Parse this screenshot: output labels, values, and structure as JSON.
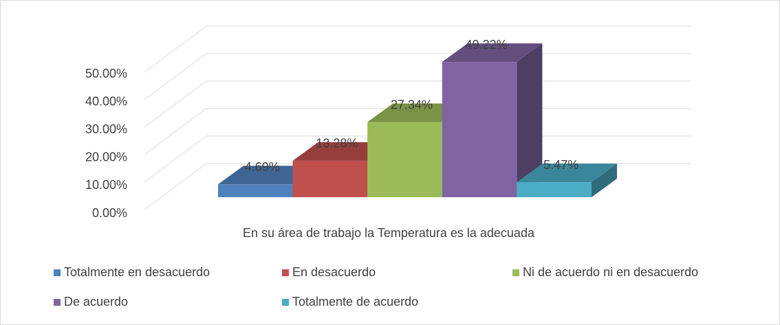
{
  "chart_data": {
    "type": "bar3d",
    "categories": [
      "En su área de trabajo la Temperatura es la adecuada"
    ],
    "series": [
      {
        "name": "Totalmente en desacuerdo",
        "color": "#4f81bd",
        "values": [
          4.69
        ],
        "value_labels": [
          "4.69%"
        ]
      },
      {
        "name": "En desacuerdo",
        "color": "#c0504d",
        "values": [
          13.28
        ],
        "value_labels": [
          "13.28%"
        ]
      },
      {
        "name": "Ni de acuerdo ni en desacuerdo",
        "color": "#9bbb59",
        "values": [
          27.34
        ],
        "value_labels": [
          "27.34%"
        ]
      },
      {
        "name": "De acuerdo",
        "color": "#8064a2",
        "values": [
          49.22
        ],
        "value_labels": [
          "49.22%"
        ]
      },
      {
        "name": "Totalmente de acuerdo",
        "color": "#4bacc6",
        "values": [
          5.47
        ],
        "value_labels": [
          "5.47%"
        ]
      }
    ],
    "ylim": [
      0,
      50
    ],
    "yticks": [
      {
        "value": 0,
        "label": "0.00%"
      },
      {
        "value": 10,
        "label": "10.00%"
      },
      {
        "value": 20,
        "label": "20.00%"
      },
      {
        "value": 30,
        "label": "30.00%"
      },
      {
        "value": 40,
        "label": "40.00%"
      },
      {
        "value": 50,
        "label": "50.00%"
      }
    ],
    "grid": true,
    "legend": "bottom"
  }
}
